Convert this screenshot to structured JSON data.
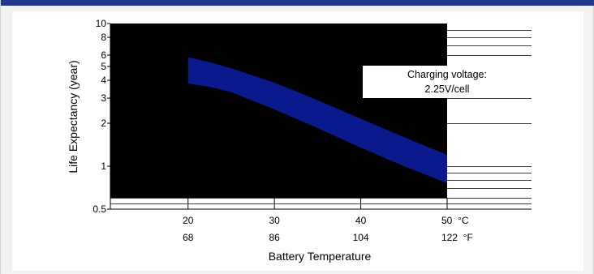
{
  "colors": {
    "header_bar": "#1f3a8a",
    "plot_background": "#000000",
    "band_fill": "#0a1a8c",
    "page_background": "#f2f2f2"
  },
  "chart_data": {
    "type": "area",
    "title": "",
    "ylabel": "Life Expectancy  (year)",
    "xlabel": "Battery Temperature",
    "y_scale": "log",
    "ylim": [
      0.5,
      10
    ],
    "xlim": [
      11,
      50
    ],
    "y_ticks": [
      0.5,
      1,
      2,
      3,
      4,
      5,
      6,
      8,
      10
    ],
    "y_tick_labels": [
      "0.5",
      "1",
      "2",
      "3",
      "4",
      "5",
      "6",
      "8",
      "10"
    ],
    "x_ticks_celsius": [
      20,
      30,
      40,
      50
    ],
    "x_tick_labels_celsius": [
      "20",
      "30",
      "40",
      "50  °C"
    ],
    "x_tick_labels_fahrenheit": [
      "68",
      "86",
      "104",
      "122  °F"
    ],
    "annotation": [
      "Charging voltage:",
      "2.25V/cell"
    ],
    "band": {
      "x": [
        20,
        22.5,
        25,
        30,
        35,
        40,
        45,
        50
      ],
      "upper": [
        5.8,
        5.35,
        4.85,
        3.85,
        2.9,
        2.15,
        1.6,
        1.2
      ],
      "lower": [
        3.8,
        3.6,
        3.3,
        2.5,
        1.85,
        1.35,
        1.0,
        0.76
      ]
    }
  }
}
